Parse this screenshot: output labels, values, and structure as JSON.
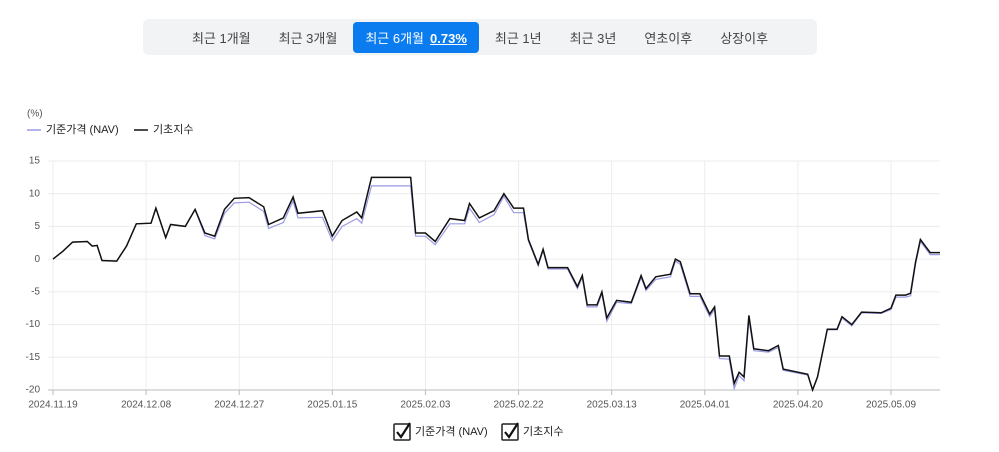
{
  "tabs": [
    "최근 1개월",
    "최근 3개월",
    "최근 6개월",
    "최근 1년",
    "최근 3년",
    "연초이후",
    "상장이후"
  ],
  "active_tab": 2,
  "active_return": "0.73%",
  "chart_data": {
    "type": "line",
    "y_unit": "(%)",
    "x": [
      "2024.11.19",
      "2024.11.21",
      "2024.11.23",
      "2024.11.26",
      "2024.11.27",
      "2024.11.28",
      "2024.11.29",
      "2024.12.02",
      "2024.12.04",
      "2024.12.06",
      "2024.12.09",
      "2024.12.10",
      "2024.12.12",
      "2024.12.13",
      "2024.12.16",
      "2024.12.18",
      "2024.12.20",
      "2024.12.22",
      "2024.12.24",
      "2024.12.26",
      "2024.12.29",
      "2025.01.01",
      "2025.01.02",
      "2025.01.05",
      "2025.01.07",
      "2025.01.08",
      "2025.01.13",
      "2025.01.15",
      "2025.01.17",
      "2025.01.20",
      "2025.01.21",
      "2025.01.23",
      "2025.01.31",
      "2025.02.01",
      "2025.02.03",
      "2025.02.05",
      "2025.02.08",
      "2025.02.11",
      "2025.02.12",
      "2025.02.14",
      "2025.02.17",
      "2025.02.19",
      "2025.02.21",
      "2025.02.23",
      "2025.02.24",
      "2025.02.26",
      "2025.02.27",
      "2025.02.28",
      "2025.03.04",
      "2025.03.06",
      "2025.03.07",
      "2025.03.08",
      "2025.03.10",
      "2025.03.11",
      "2025.03.12",
      "2025.03.14",
      "2025.03.17",
      "2025.03.19",
      "2025.03.20",
      "2025.03.22",
      "2025.03.25",
      "2025.03.26",
      "2025.03.27",
      "2025.03.29",
      "2025.03.31",
      "2025.04.02",
      "2025.04.03",
      "2025.04.04",
      "2025.04.06",
      "2025.04.07",
      "2025.04.08",
      "2025.04.09",
      "2025.04.10",
      "2025.04.11",
      "2025.04.14",
      "2025.04.16",
      "2025.04.17",
      "2025.04.22",
      "2025.04.23",
      "2025.04.24",
      "2025.04.26",
      "2025.04.28",
      "2025.04.29",
      "2025.05.01",
      "2025.05.03",
      "2025.05.07",
      "2025.05.09",
      "2025.05.10",
      "2025.05.12",
      "2025.05.13",
      "2025.05.14",
      "2025.05.15",
      "2025.05.17",
      "2025.05.19"
    ],
    "series": [
      {
        "name": "기준가격 (NAV)",
        "color": "#9a9ae6",
        "values": [
          0,
          1.2,
          2.6,
          2.7,
          2.0,
          2.1,
          -0.2,
          -0.3,
          2.0,
          5.4,
          5.5,
          7.8,
          3.3,
          5.3,
          5.0,
          7.6,
          3.6,
          3.1,
          7.0,
          8.6,
          8.7,
          7.3,
          4.7,
          5.6,
          8.9,
          6.3,
          6.4,
          2.8,
          5.0,
          6.2,
          5.5,
          11.2,
          11.2,
          3.5,
          3.5,
          2.2,
          5.4,
          5.4,
          7.8,
          5.6,
          6.8,
          9.6,
          7.1,
          7.1,
          2.8,
          -1.0,
          1.3,
          -1.5,
          -1.5,
          -4.5,
          -2.8,
          -7.3,
          -7.3,
          -5.3,
          -9.5,
          -6.6,
          -6.8,
          -2.8,
          -4.8,
          -3.1,
          -2.7,
          -0.3,
          -0.8,
          -5.7,
          -5.7,
          -8.8,
          -7.7,
          -15.2,
          -15.3,
          -19.8,
          -17.8,
          -18.6,
          -9.2,
          -14.0,
          -14.2,
          -13.5,
          -17.0,
          -17.7,
          -20.0,
          -18.1,
          -10.8,
          -10.8,
          -9.0,
          -10.2,
          -8.2,
          -8.3,
          -7.7,
          -5.8,
          -5.8,
          -5.6,
          -0.8,
          2.7,
          0.7,
          0.7
        ]
      },
      {
        "name": "기초지수",
        "color": "#111111",
        "values": [
          0,
          1.2,
          2.6,
          2.7,
          2.0,
          2.1,
          -0.2,
          -0.3,
          2.0,
          5.4,
          5.5,
          7.8,
          3.3,
          5.3,
          5.0,
          7.6,
          4.0,
          3.5,
          7.6,
          9.3,
          9.4,
          8.0,
          5.3,
          6.3,
          9.5,
          7.0,
          7.4,
          3.5,
          5.9,
          7.2,
          6.3,
          12.5,
          12.5,
          4.0,
          4.0,
          2.7,
          6.2,
          5.9,
          8.5,
          6.3,
          7.4,
          10.0,
          7.8,
          7.8,
          3.0,
          -0.8,
          1.5,
          -1.3,
          -1.3,
          -4.2,
          -2.5,
          -7.0,
          -7.0,
          -5.0,
          -9.0,
          -6.3,
          -6.6,
          -2.5,
          -4.5,
          -2.7,
          -2.3,
          0.0,
          -0.4,
          -5.3,
          -5.3,
          -8.4,
          -7.3,
          -14.8,
          -14.8,
          -19.0,
          -17.3,
          -18.0,
          -8.6,
          -13.7,
          -14.0,
          -13.2,
          -16.8,
          -17.6,
          -20.0,
          -18.0,
          -10.7,
          -10.7,
          -8.8,
          -10.0,
          -8.1,
          -8.2,
          -7.5,
          -5.5,
          -5.5,
          -5.2,
          -0.5,
          3.0,
          1.0,
          1.0
        ]
      }
    ],
    "xlim": [
      "2024.11.19",
      "2025.05.19"
    ],
    "xticks": [
      "2024.11.19",
      "2024.12.08",
      "2024.12.27",
      "2025.01.15",
      "2025.02.03",
      "2025.02.22",
      "2025.03.13",
      "2025.04.01",
      "2025.04.20",
      "2025.05.09"
    ],
    "ylim": [
      -20,
      15
    ],
    "yticks": [
      -20,
      -15,
      -10,
      -5,
      0,
      5,
      10,
      15
    ],
    "grid": true
  }
}
